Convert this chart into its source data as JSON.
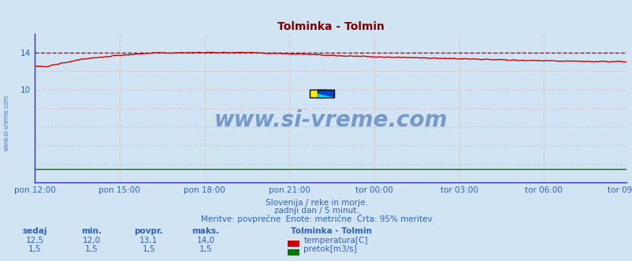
{
  "title": "Tolminka - Tolmin",
  "title_color": "#800000",
  "bg_color": "#d0e4f4",
  "plot_bg_color": "#d0e4f4",
  "x_tick_labels": [
    "pon 12:00",
    "pon 15:00",
    "pon 18:00",
    "pon 21:00",
    "tor 00:00",
    "tor 03:00",
    "tor 06:00",
    "tor 09:00"
  ],
  "x_ticks_pos": [
    0,
    36,
    72,
    108,
    144,
    180,
    216,
    251
  ],
  "total_points": 252,
  "ylim": [
    0,
    16.0
  ],
  "yticks": [
    0,
    2,
    4,
    6,
    8,
    10,
    12,
    14
  ],
  "ytick_labels": [
    "",
    "",
    "",
    "",
    "",
    "10",
    "",
    "14"
  ],
  "grid_color": "#e89090",
  "temp_color": "#cc0000",
  "flow_color": "#007700",
  "dashed_line_color": "#cc0000",
  "dashed_y": 14.0,
  "axis_color": "#3030b0",
  "text_color": "#3060c0",
  "watermark": "www.si-vreme.com",
  "subtitle1": "Slovenija / reke in morje.",
  "subtitle2": "zadnji dan / 5 minut.",
  "subtitle3": "Meritve: povprečne  Enote: metrične  Črta: 95% meritev",
  "legend_title": "Tolminka - Tolmin",
  "stat_headers": [
    "sedaj",
    "min.",
    "povpr.",
    "maks."
  ],
  "stat_temp": [
    12.5,
    12.0,
    13.1,
    14.0
  ],
  "stat_flow": [
    1.5,
    1.5,
    1.5,
    1.5
  ],
  "legend_temp": "temperatura[C]",
  "legend_flow": "pretok[m3/s]"
}
